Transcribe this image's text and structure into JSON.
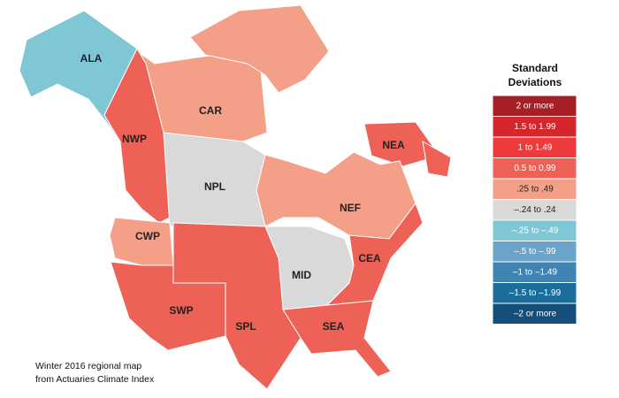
{
  "legend": {
    "title_lines": [
      "Standard",
      "Deviations"
    ],
    "items": [
      {
        "label": "2 or more",
        "color": "#a51f24"
      },
      {
        "label": "1.5 to 1.99",
        "color": "#d6262d"
      },
      {
        "label": "1 to 1.49",
        "color": "#ee3a3c"
      },
      {
        "label": "0.5 to 0.99",
        "color": "#ee6157"
      },
      {
        "label": ".25 to .49",
        "color": "#f4a089"
      },
      {
        "label": "–.24 to .24",
        "color": "#d9d9d9"
      },
      {
        "label": "–.25 to –.49",
        "color": "#80c7d6"
      },
      {
        "label": "–.5 to –.99",
        "color": "#6ba4c9"
      },
      {
        "label": "–1 to –1.49",
        "color": "#3f84b3"
      },
      {
        "label": "–1.5 to –1.99",
        "color": "#1b6e9a"
      },
      {
        "label": "–2 or more",
        "color": "#154e7a"
      }
    ]
  },
  "regions": [
    {
      "label": "ALA",
      "color": "#80c7d6"
    },
    {
      "label": "CAR",
      "color": "#f4a089"
    },
    {
      "label": "NWP",
      "color": "#ee6157"
    },
    {
      "label": "NEA",
      "color": "#ee6157"
    },
    {
      "label": "NPL",
      "color": "#d9d9d9"
    },
    {
      "label": "NEF",
      "color": "#f4a089"
    },
    {
      "label": "CWP",
      "color": "#f4a089"
    },
    {
      "label": "MID",
      "color": "#d9d9d9"
    },
    {
      "label": "CEA",
      "color": "#ee6157"
    },
    {
      "label": "SWP",
      "color": "#ee6157"
    },
    {
      "label": "SPL",
      "color": "#ee6157"
    },
    {
      "label": "SEA",
      "color": "#ee6157"
    }
  ],
  "caption_lines": [
    "Winter 2016 regional map",
    "from Actuaries Climate Index"
  ]
}
